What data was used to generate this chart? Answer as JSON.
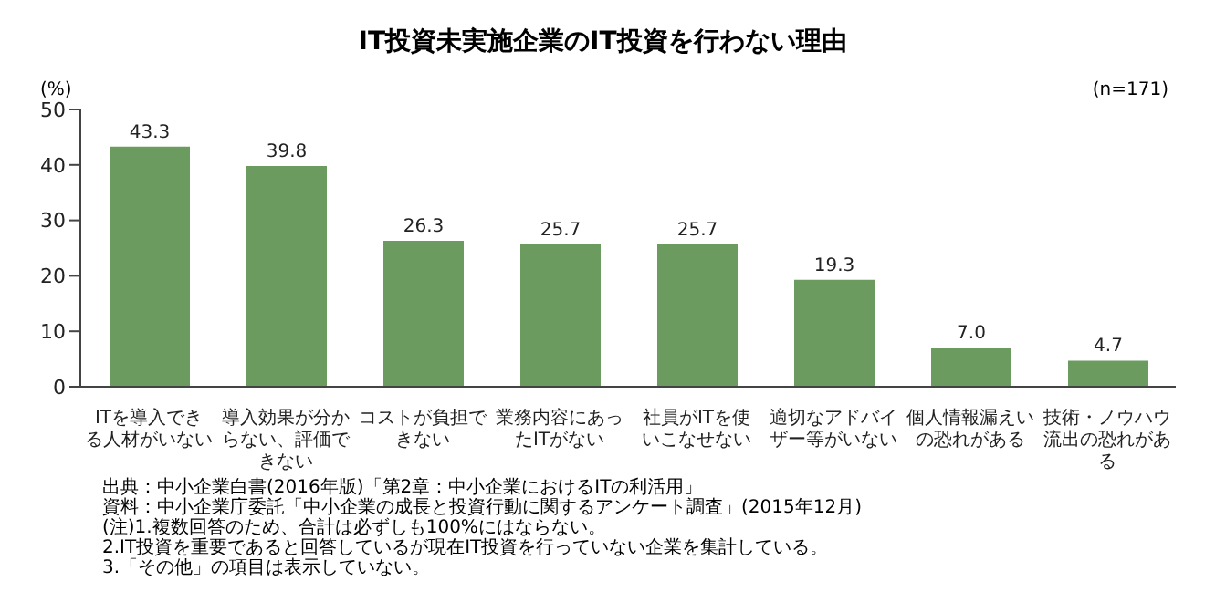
{
  "chart_data": {
    "type": "bar",
    "title": "IT投資未実施企業のIT投資を行わない理由",
    "ylabel": "(%)",
    "categories": [
      "ITを導入できる人材がいない",
      "導入効果が分からない、評価できない",
      "コストが負担できない",
      "業務内容にあったITがない",
      "社員がITを使いこなせない",
      "適切なアドバイザー等がいない",
      "個人情報漏えいの恐れがある",
      "技術・ノウハウ流出の恐れがある"
    ],
    "values": [
      43.3,
      39.8,
      26.3,
      25.7,
      25.7,
      19.3,
      7.0,
      4.7
    ],
    "value_labels": [
      "43.3",
      "39.8",
      "26.3",
      "25.7",
      "25.7",
      "19.3",
      "7.0",
      "4.7"
    ],
    "color": "#6b9b5e",
    "ylim": [
      0,
      50
    ],
    "yticks": [
      0,
      10,
      20,
      30,
      40,
      50
    ],
    "grid": false,
    "legend": false,
    "annotations": [
      "(n=171)",
      "出典：中小企業白書(2016年版)「第2章：中小企業におけるITの利活用」",
      "資料：中小企業庁委託「中小企業の成長と投資行動に関するアンケート調査」(2015年12月)",
      "(注)1.複数回答のため、合計は必ずしも100%にはならない。",
      "2.IT投資を重要であると回答しているが現在IT投資を行っていない企業を集計している。",
      "3.「その他」の項目は表示していない。"
    ]
  }
}
